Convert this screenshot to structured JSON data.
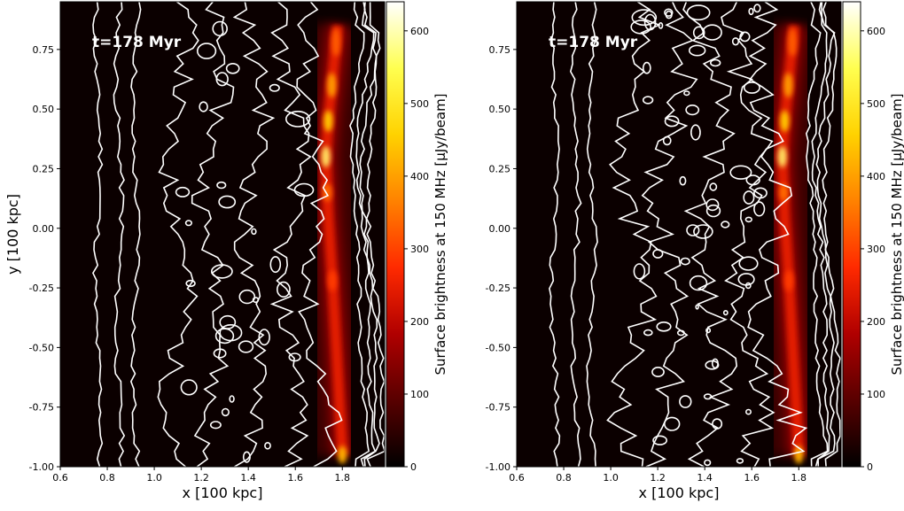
{
  "colors": {
    "background": "#0b0000",
    "contour": "#ffffff",
    "colormap": [
      "#000000",
      "#580000",
      "#b00000",
      "#ff2a00",
      "#ff8200",
      "#ffd200",
      "#ffff50",
      "#ffffff"
    ]
  },
  "chart_data": [
    {
      "type": "heatmap",
      "annotation": "t=178 Myr",
      "xlabel": "x [100 kpc]",
      "ylabel": "y [100 kpc]",
      "xlim": [
        0.6,
        1.98
      ],
      "ylim": [
        -1.0,
        0.95
      ],
      "xticks": [
        "0.6",
        "0.8",
        "1.0",
        "1.2",
        "1.4",
        "1.6",
        "1.8"
      ],
      "yticks": [
        "-1.00",
        "-0.75",
        "-0.50",
        "-0.25",
        "0.00",
        "0.25",
        "0.50",
        "0.75"
      ],
      "colorbar": {
        "label": "Surface brightness at 150 MHz [μJy/beam]",
        "range": [
          0,
          640
        ],
        "ticks": [
          "0",
          "100",
          "200",
          "300",
          "400",
          "500",
          "600"
        ]
      },
      "relic_ridge_x": [
        1.78,
        1.76,
        1.74,
        1.73,
        1.74,
        1.76,
        1.78,
        1.8
      ],
      "relic_ridge_y": [
        0.85,
        0.65,
        0.45,
        0.3,
        0.05,
        -0.25,
        -0.6,
        -0.95
      ],
      "peak_brightness": 640
    },
    {
      "type": "heatmap",
      "annotation": "t=178 Myr",
      "xlabel": "x [100 kpc]",
      "ylabel": "",
      "xlim": [
        0.6,
        1.98
      ],
      "ylim": [
        -1.0,
        0.95
      ],
      "xticks": [
        "0.6",
        "0.8",
        "1.0",
        "1.2",
        "1.4",
        "1.6",
        "1.8"
      ],
      "yticks": [
        "-1.00",
        "-0.75",
        "-0.50",
        "-0.25",
        "0.00",
        "0.25",
        "0.50",
        "0.75"
      ],
      "colorbar": {
        "label": "Surface brightness at 150 MHz [μJy/beam]",
        "range": [
          0,
          640
        ],
        "ticks": [
          "0",
          "100",
          "200",
          "300",
          "400",
          "500",
          "600"
        ]
      },
      "relic_ridge_x": [
        1.78,
        1.76,
        1.74,
        1.73,
        1.74,
        1.76,
        1.78,
        1.8
      ],
      "relic_ridge_y": [
        0.85,
        0.65,
        0.45,
        0.3,
        0.05,
        -0.25,
        -0.6,
        -0.95
      ],
      "peak_brightness": 640
    }
  ]
}
